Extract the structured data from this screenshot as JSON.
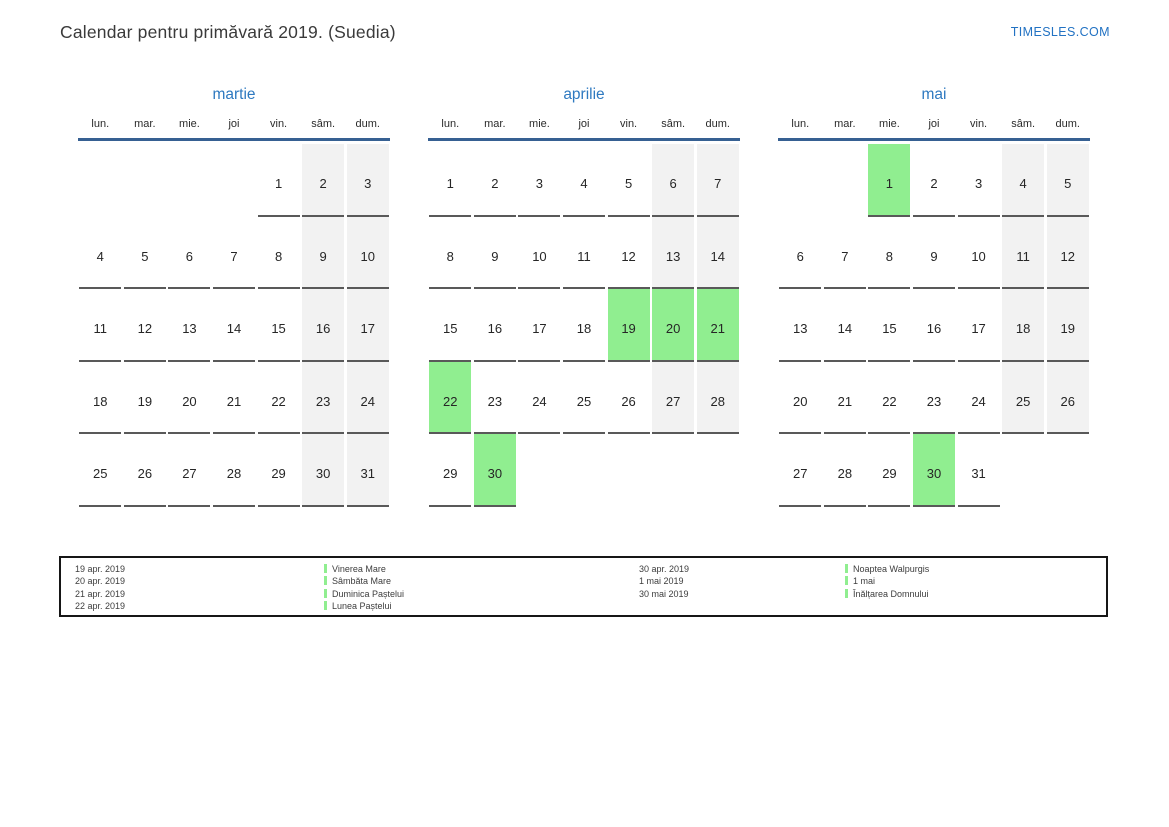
{
  "page": {
    "title": "Calendar pentru primăvară 2019. (Suedia)",
    "site": "TIMESLES.COM"
  },
  "calendar": {
    "weekday_labels": [
      "lun.",
      "mar.",
      "mie.",
      "joi",
      "vin.",
      "sâm.",
      "dum."
    ],
    "months": [
      {
        "name": "martie",
        "weeks": [
          [
            null,
            null,
            null,
            null,
            1,
            2,
            3
          ],
          [
            4,
            5,
            6,
            7,
            8,
            9,
            10
          ],
          [
            11,
            12,
            13,
            14,
            15,
            16,
            17
          ],
          [
            18,
            19,
            20,
            21,
            22,
            23,
            24
          ],
          [
            25,
            26,
            27,
            28,
            29,
            30,
            31
          ]
        ],
        "highlighted_days": []
      },
      {
        "name": "aprilie",
        "weeks": [
          [
            1,
            2,
            3,
            4,
            5,
            6,
            7
          ],
          [
            8,
            9,
            10,
            11,
            12,
            13,
            14
          ],
          [
            15,
            16,
            17,
            18,
            19,
            20,
            21
          ],
          [
            22,
            23,
            24,
            25,
            26,
            27,
            28
          ],
          [
            29,
            30,
            null,
            null,
            null,
            null,
            null
          ]
        ],
        "highlighted_days": [
          19,
          20,
          21,
          22,
          30
        ]
      },
      {
        "name": "mai",
        "weeks": [
          [
            null,
            null,
            1,
            2,
            3,
            4,
            5
          ],
          [
            6,
            7,
            8,
            9,
            10,
            11,
            12
          ],
          [
            13,
            14,
            15,
            16,
            17,
            18,
            19
          ],
          [
            20,
            21,
            22,
            23,
            24,
            25,
            26
          ],
          [
            27,
            28,
            29,
            30,
            31,
            null,
            null
          ]
        ],
        "highlighted_days": [
          1,
          30
        ]
      }
    ]
  },
  "legend": {
    "groups": [
      {
        "entries": [
          {
            "date": "19 apr. 2019",
            "name": "Vinerea Mare"
          },
          {
            "date": "20 apr. 2019",
            "name": "Sâmbăta Mare"
          },
          {
            "date": "21 apr. 2019",
            "name": "Duminica Paștelui"
          },
          {
            "date": "22 apr. 2019",
            "name": "Lunea Paștelui"
          }
        ]
      },
      {
        "entries": [
          {
            "date": "30 apr. 2019",
            "name": "Noaptea Walpurgis"
          },
          {
            "date": "1 mai 2019",
            "name": "1 mai"
          },
          {
            "date": "30 mai 2019",
            "name": "Înălțarea Domnului"
          }
        ]
      }
    ]
  },
  "colors": {
    "highlight_green": "#90ee90",
    "weekend_gray": "#f2f2f2",
    "underline_gray": "#595959",
    "header_line_blue": "#366092",
    "month_title_blue": "#2e79c0",
    "site_link_blue": "#2272c3"
  }
}
